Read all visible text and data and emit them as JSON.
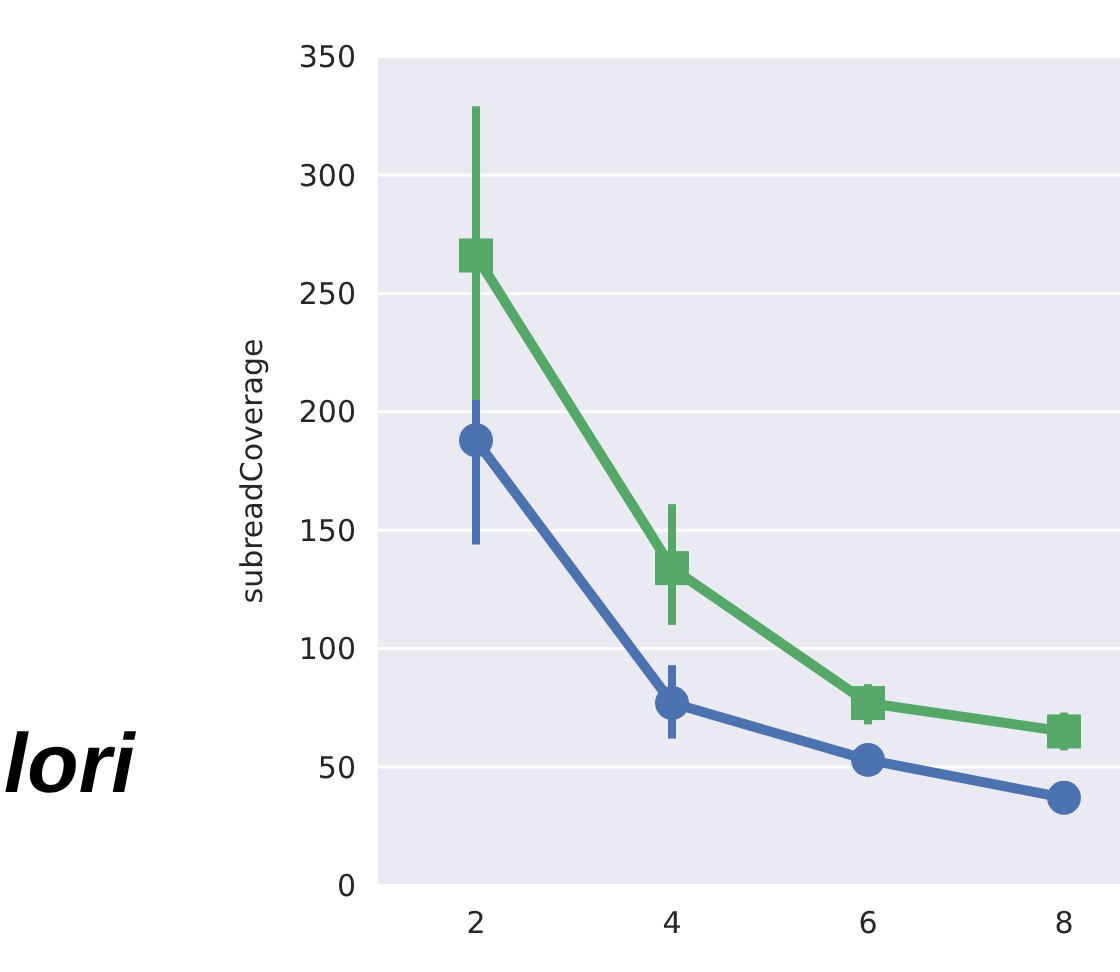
{
  "chart_data": {
    "type": "line",
    "ylabel": "subreadCoverage",
    "categories": [
      "2",
      "4",
      "6",
      "8"
    ],
    "ylim": [
      0,
      350
    ],
    "yticks": [
      0,
      50,
      100,
      150,
      200,
      250,
      300,
      350
    ],
    "grid": "y",
    "annotations": [
      "lori"
    ],
    "series": [
      {
        "color": "#4c72b0",
        "marker": "circle",
        "values": [
          188,
          77,
          53,
          37
        ],
        "errors": [
          [
            144,
            205
          ],
          [
            62,
            93
          ],
          null,
          null
        ]
      },
      {
        "color": "#55a868",
        "marker": "square",
        "values": [
          266,
          134,
          77,
          65
        ],
        "errors": [
          [
            205,
            329
          ],
          [
            110,
            161
          ],
          [
            68,
            85
          ],
          [
            57,
            73
          ]
        ]
      }
    ]
  }
}
